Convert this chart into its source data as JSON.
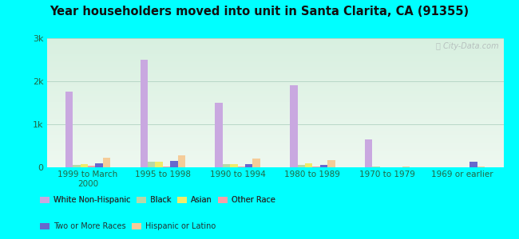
{
  "title": "Year householders moved into unit in Santa Clarita, CA (91355)",
  "categories": [
    "1999 to March\n2000",
    "1995 to 1998",
    "1990 to 1994",
    "1980 to 1989",
    "1970 to 1979",
    "1969 or earlier"
  ],
  "series_order": [
    "White Non-Hispanic",
    "Black",
    "Asian",
    "Other Race",
    "Two or More Races",
    "Hispanic or Latino"
  ],
  "series": {
    "White Non-Hispanic": [
      1750,
      2500,
      1500,
      1900,
      650,
      0
    ],
    "Black": [
      55,
      130,
      70,
      50,
      10,
      5
    ],
    "Asian": [
      75,
      125,
      75,
      95,
      8,
      5
    ],
    "Other Race": [
      30,
      25,
      20,
      18,
      5,
      3
    ],
    "Two or More Races": [
      95,
      155,
      65,
      48,
      5,
      130
    ],
    "Hispanic or Latino": [
      215,
      285,
      195,
      165,
      15,
      10
    ]
  },
  "colors": {
    "White Non-Hispanic": "#c9a8e0",
    "Black": "#b8d8a8",
    "Asian": "#f0ec6a",
    "Other Race": "#f5a0a8",
    "Two or More Races": "#6868cc",
    "Hispanic or Latino": "#f5cc99"
  },
  "background_color": "#00ffff",
  "ylim": [
    0,
    3000
  ],
  "yticks": [
    0,
    1000,
    2000,
    3000
  ],
  "ytick_labels": [
    "0",
    "1k",
    "2k",
    "3k"
  ],
  "bar_width": 0.1,
  "watermark": "ⓘ City-Data.com",
  "legend_row1": [
    "White Non-Hispanic",
    "Black",
    "Asian",
    "Other Race"
  ],
  "legend_row2": [
    "Two or More Races",
    "Hispanic or Latino"
  ]
}
